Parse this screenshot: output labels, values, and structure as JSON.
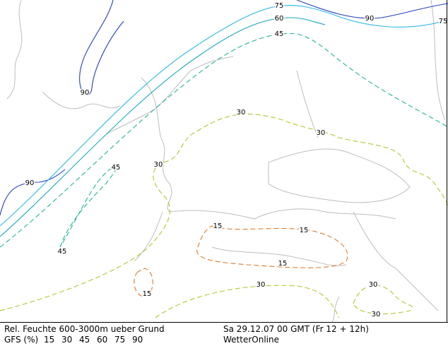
{
  "footer": {
    "title": "Rel. Feuchte 600-3000m ueber Grund",
    "model": "GFS (%)",
    "levels": [
      {
        "value": 15,
        "color": "#e07a2a"
      },
      {
        "value": 30,
        "color": "#a8cc30"
      },
      {
        "value": 45,
        "color": "#22b49a"
      },
      {
        "value": 60,
        "color": "#1aa6c0"
      },
      {
        "value": 75,
        "color": "#2cb8e6"
      },
      {
        "value": 90,
        "color": "#2440c0"
      }
    ],
    "date": "Sa 29.12.07 00 GMT (Fr 12 + 12h)",
    "source": "WetterOnline"
  }
}
